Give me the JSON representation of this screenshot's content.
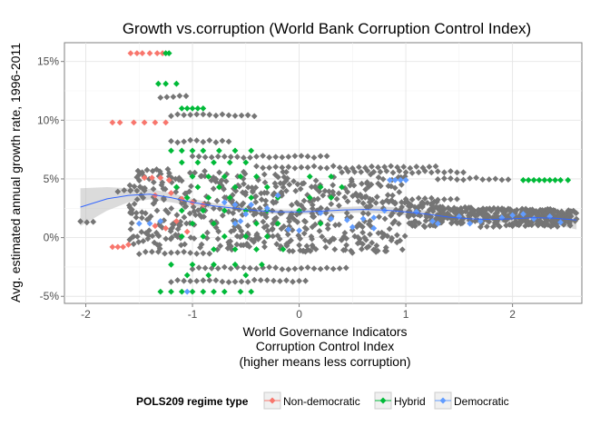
{
  "chart_data": {
    "type": "scatter",
    "title": "Growth vs.corruption (World Bank Corruption Control Index)",
    "xlabel": [
      "World Governance Indicators",
      "Corruption Control Index",
      "(higher means less corruption)"
    ],
    "ylabel": "Avg. estimated annual growth rate, 1996-2011",
    "xlim": [
      -2.2,
      2.65
    ],
    "ylim": [
      -5.6,
      16.6
    ],
    "x_ticks": [
      -2,
      -1,
      0,
      1,
      2
    ],
    "x_tick_labels": [
      "-2",
      "-1",
      "0",
      "1",
      "2"
    ],
    "y_ticks": [
      -5,
      0,
      5,
      10,
      15
    ],
    "y_tick_labels": [
      "-5%",
      "0%",
      "5%",
      "10%",
      "15%"
    ],
    "grid": true,
    "legend": {
      "title": "POLS209 regime type",
      "position": "bottom",
      "entries": [
        {
          "name": "Non-democratic",
          "color": "#F8766D"
        },
        {
          "name": "Hybrid",
          "color": "#00BA38"
        },
        {
          "name": "Democratic",
          "color": "#619CFF"
        }
      ]
    },
    "series": [
      {
        "name": "Non-democratic",
        "color": "#F8766D",
        "points": [
          [
            -1.58,
            15.7
          ],
          [
            -1.52,
            15.7
          ],
          [
            -1.47,
            15.7
          ],
          [
            -1.4,
            15.7
          ],
          [
            -1.33,
            15.7
          ],
          [
            -1.28,
            15.7
          ],
          [
            -1.75,
            9.8
          ],
          [
            -1.68,
            9.8
          ],
          [
            -1.55,
            9.8
          ],
          [
            -1.45,
            9.8
          ],
          [
            -1.35,
            9.8
          ],
          [
            -1.25,
            9.8
          ],
          [
            -1.75,
            -0.8
          ],
          [
            -1.7,
            -0.8
          ],
          [
            -1.65,
            -0.8
          ],
          [
            -1.6,
            -0.6
          ],
          [
            -1.45,
            5.1
          ],
          [
            -1.38,
            5.1
          ],
          [
            -1.3,
            5.1
          ],
          [
            -1.22,
            4.9
          ],
          [
            -1.35,
            3.6
          ],
          [
            -1.2,
            3.8
          ],
          [
            -1.1,
            3.3
          ],
          [
            -1.0,
            3.0
          ],
          [
            -0.9,
            2.8
          ],
          [
            -1.35,
            1.0
          ],
          [
            -1.25,
            0.8
          ],
          [
            -1.15,
            1.4
          ],
          [
            -1.05,
            0.5
          ]
        ]
      },
      {
        "name": "Hybrid",
        "color": "#00BA38",
        "points": [
          [
            -1.25,
            15.7
          ],
          [
            -1.22,
            15.7
          ],
          [
            -1.32,
            13.1
          ],
          [
            -1.25,
            13.1
          ],
          [
            -1.15,
            13.1
          ],
          [
            -1.1,
            11.0
          ],
          [
            -1.05,
            11.0
          ],
          [
            -1.0,
            11.0
          ],
          [
            -0.95,
            11.0
          ],
          [
            -0.9,
            11.0
          ],
          [
            -1.3,
            -4.6
          ],
          [
            -1.2,
            -4.6
          ],
          [
            -1.1,
            -4.6
          ],
          [
            -1.0,
            -4.6
          ],
          [
            -0.9,
            -4.6
          ],
          [
            -0.8,
            -4.6
          ],
          [
            -0.7,
            -4.6
          ],
          [
            -0.55,
            -4.6
          ],
          [
            -0.45,
            -4.6
          ],
          [
            2.1,
            4.9
          ],
          [
            2.15,
            4.9
          ],
          [
            2.2,
            4.9
          ],
          [
            2.25,
            4.9
          ],
          [
            2.3,
            4.9
          ],
          [
            2.35,
            4.9
          ],
          [
            2.4,
            4.9
          ],
          [
            2.45,
            4.9
          ],
          [
            2.52,
            4.9
          ],
          [
            -1.2,
            7.4
          ],
          [
            -1.1,
            7.4
          ],
          [
            -1.0,
            7.4
          ],
          [
            -0.9,
            7.4
          ],
          [
            -0.75,
            7.4
          ],
          [
            -0.6,
            7.4
          ],
          [
            -0.45,
            7.4
          ],
          [
            -1.1,
            6.4
          ],
          [
            -0.95,
            6.4
          ],
          [
            -0.8,
            6.4
          ],
          [
            -0.65,
            6.4
          ],
          [
            -0.5,
            6.4
          ],
          [
            -1.0,
            5.2
          ],
          [
            -0.85,
            5.2
          ],
          [
            -0.7,
            5.2
          ],
          [
            -0.55,
            5.2
          ],
          [
            -0.4,
            5.2
          ],
          [
            0.1,
            5.2
          ],
          [
            0.3,
            5.2
          ],
          [
            -1.15,
            4.3
          ],
          [
            -0.95,
            4.3
          ],
          [
            -0.75,
            4.3
          ],
          [
            -0.6,
            4.3
          ],
          [
            -0.3,
            4.3
          ],
          [
            0.2,
            4.3
          ],
          [
            0.4,
            4.3
          ],
          [
            -1.05,
            3.4
          ],
          [
            -0.85,
            3.4
          ],
          [
            -0.65,
            3.4
          ],
          [
            -0.45,
            3.4
          ],
          [
            -0.2,
            3.4
          ],
          [
            0.1,
            3.4
          ],
          [
            0.3,
            3.4
          ],
          [
            -1.1,
            2.3
          ],
          [
            -0.9,
            2.3
          ],
          [
            -0.7,
            2.3
          ],
          [
            -0.5,
            2.3
          ],
          [
            -0.3,
            2.3
          ],
          [
            0.0,
            2.3
          ],
          [
            -1.0,
            1.2
          ],
          [
            -0.8,
            1.2
          ],
          [
            -0.6,
            1.2
          ],
          [
            -0.4,
            1.2
          ],
          [
            -0.2,
            1.2
          ],
          [
            0.2,
            1.2
          ],
          [
            -1.1,
            0.1
          ],
          [
            -0.9,
            0.1
          ],
          [
            -0.7,
            0.1
          ],
          [
            -0.5,
            0.1
          ],
          [
            -0.3,
            0.1
          ],
          [
            -0.8,
            -1.0
          ],
          [
            -0.6,
            -1.0
          ],
          [
            -0.4,
            -1.0
          ],
          [
            -0.15,
            -1.0
          ],
          [
            -1.2,
            -2.3
          ],
          [
            -1.0,
            -2.3
          ],
          [
            -0.8,
            -2.3
          ],
          [
            -0.6,
            -2.3
          ],
          [
            -0.35,
            -2.3
          ],
          [
            -1.05,
            -3.2
          ],
          [
            -0.85,
            -3.2
          ],
          [
            -0.5,
            -3.2
          ]
        ]
      },
      {
        "name": "Democratic",
        "color": "#619CFF",
        "points": [
          [
            -1.4,
            1.2
          ],
          [
            -1.5,
            1.2
          ],
          [
            -1.3,
            1.4
          ],
          [
            -1.05,
            -4.6
          ],
          [
            -0.6,
            1.2
          ],
          [
            -0.55,
            1.4
          ],
          [
            -0.7,
            3.0
          ],
          [
            -0.6,
            2.8
          ],
          [
            -0.45,
            2.8
          ],
          [
            -0.5,
            2.0
          ],
          [
            0.2,
            2.1
          ],
          [
            0.3,
            1.6
          ],
          [
            0.45,
            1.5
          ],
          [
            0.6,
            1.6
          ],
          [
            0.7,
            1.7
          ],
          [
            0.8,
            2.3
          ],
          [
            0.85,
            4.9
          ],
          [
            0.9,
            4.9
          ],
          [
            0.95,
            4.9
          ],
          [
            1.0,
            4.9
          ],
          [
            0.5,
            0.9
          ],
          [
            0.7,
            0.8
          ],
          [
            1.1,
            2.2
          ],
          [
            1.25,
            1.4
          ],
          [
            1.3,
            1.2
          ],
          [
            1.5,
            1.8
          ],
          [
            1.6,
            1.2
          ],
          [
            1.7,
            1.4
          ],
          [
            1.9,
            1.7
          ],
          [
            2.0,
            1.9
          ],
          [
            2.1,
            2.0
          ],
          [
            2.2,
            1.6
          ],
          [
            2.35,
            1.8
          ],
          [
            2.45,
            1.3
          ],
          [
            -0.1,
            0.7
          ],
          [
            0.0,
            0.6
          ],
          [
            -0.3,
            2.5
          ],
          [
            -0.2,
            3.6
          ]
        ]
      }
    ],
    "smooth": [
      [
        -2.05,
        2.6
      ],
      [
        -1.8,
        3.3
      ],
      [
        -1.6,
        3.6
      ],
      [
        -1.4,
        3.7
      ],
      [
        -1.2,
        3.4
      ],
      [
        -1.0,
        3.0
      ],
      [
        -0.8,
        2.7
      ],
      [
        -0.6,
        2.5
      ],
      [
        -0.4,
        2.3
      ],
      [
        -0.2,
        2.2
      ],
      [
        0.0,
        2.2
      ],
      [
        0.2,
        2.25
      ],
      [
        0.4,
        2.35
      ],
      [
        0.6,
        2.4
      ],
      [
        0.8,
        2.35
      ],
      [
        1.0,
        2.2
      ],
      [
        1.2,
        2.0
      ],
      [
        1.4,
        1.75
      ],
      [
        1.6,
        1.6
      ],
      [
        1.8,
        1.55
      ],
      [
        2.0,
        1.6
      ],
      [
        2.2,
        1.7
      ],
      [
        2.4,
        1.65
      ],
      [
        2.6,
        1.5
      ]
    ],
    "smooth_ci_halfwidth": [
      1.6,
      1.0,
      0.6,
      0.45,
      0.4,
      0.3,
      0.25,
      0.22,
      0.2,
      0.2,
      0.2,
      0.22,
      0.25,
      0.28,
      0.3,
      0.3,
      0.3,
      0.3,
      0.3,
      0.3,
      0.35,
      0.45,
      0.55,
      0.8
    ]
  }
}
